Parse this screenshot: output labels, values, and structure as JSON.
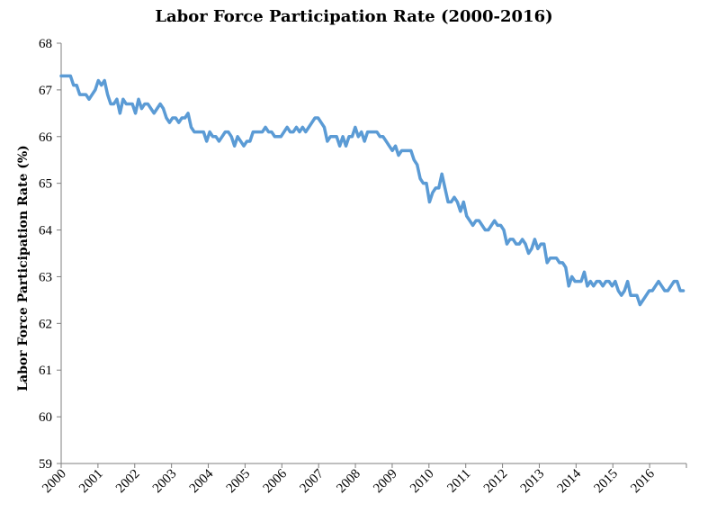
{
  "chart_data": {
    "type": "line",
    "title": "Labor Force Participation Rate (2000-2016)",
    "xlabel": "",
    "ylabel": "Labor Force Participation Rate (%)",
    "ylim": [
      59,
      68
    ],
    "yticks": [
      "59",
      "60",
      "61",
      "62",
      "63",
      "64",
      "65",
      "66",
      "67",
      "68"
    ],
    "xticks": [
      "2000",
      "2001",
      "2002",
      "2003",
      "2004",
      "2005",
      "2006",
      "2007",
      "2008",
      "2009",
      "2010",
      "2011",
      "2012",
      "2013",
      "2014",
      "2015",
      "2016"
    ],
    "grid": false,
    "line_color": "#5b9bd5",
    "series": [
      {
        "values": [
          67.3,
          67.3,
          67.3,
          67.3,
          67.1,
          67.1,
          66.9,
          66.9,
          66.9,
          66.8,
          66.9,
          67.0,
          67.2,
          67.1,
          67.2,
          66.9,
          66.7,
          66.7,
          66.8,
          66.5,
          66.8,
          66.7,
          66.7,
          66.7,
          66.5,
          66.8,
          66.6,
          66.7,
          66.7,
          66.6,
          66.5,
          66.6,
          66.7,
          66.6,
          66.4,
          66.3,
          66.4,
          66.4,
          66.3,
          66.4,
          66.4,
          66.5,
          66.2,
          66.1,
          66.1,
          66.1,
          66.1,
          65.9,
          66.1,
          66.0,
          66.0,
          65.9,
          66.0,
          66.1,
          66.1,
          66.0,
          65.8,
          66.0,
          65.9,
          65.8,
          65.9,
          65.9,
          66.1,
          66.1,
          66.1,
          66.1,
          66.2,
          66.1,
          66.1,
          66.0,
          66.0,
          66.0,
          66.1,
          66.2,
          66.1,
          66.1,
          66.2,
          66.1,
          66.2,
          66.1,
          66.2,
          66.3,
          66.4,
          66.4,
          66.3,
          66.2,
          65.9,
          66.0,
          66.0,
          66.0,
          65.8,
          66.0,
          65.8,
          66.0,
          66.0,
          66.2,
          66.0,
          66.1,
          65.9,
          66.1,
          66.1,
          66.1,
          66.1,
          66.0,
          66.0,
          65.9,
          65.8,
          65.7,
          65.8,
          65.6,
          65.7,
          65.7,
          65.7,
          65.7,
          65.5,
          65.4,
          65.1,
          65.0,
          65.0,
          64.6,
          64.8,
          64.9,
          64.9,
          65.2,
          64.9,
          64.6,
          64.6,
          64.7,
          64.6,
          64.4,
          64.6,
          64.3,
          64.2,
          64.1,
          64.2,
          64.2,
          64.1,
          64.0,
          64.0,
          64.1,
          64.2,
          64.1,
          64.1,
          64.0,
          63.7,
          63.8,
          63.8,
          63.7,
          63.7,
          63.8,
          63.7,
          63.5,
          63.6,
          63.8,
          63.6,
          63.7,
          63.7,
          63.3,
          63.4,
          63.4,
          63.4,
          63.3,
          63.3,
          63.2,
          62.8,
          63.0,
          62.9,
          62.9,
          62.9,
          63.1,
          62.8,
          62.9,
          62.8,
          62.9,
          62.9,
          62.8,
          62.9,
          62.9,
          62.8,
          62.9,
          62.7,
          62.6,
          62.7,
          62.9,
          62.6,
          62.6,
          62.6,
          62.4,
          62.5,
          62.6,
          62.7,
          62.7,
          62.8,
          62.9,
          62.8,
          62.7,
          62.7,
          62.8,
          62.9,
          62.9,
          62.7,
          62.7
        ]
      }
    ]
  }
}
